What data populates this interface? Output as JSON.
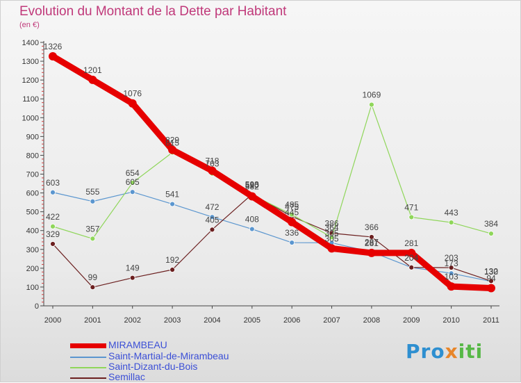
{
  "title": "Evolution du Montant de la Dette par Habitant",
  "subtitle": "(en €)",
  "logo": {
    "part1": "Pro",
    "part2": "x",
    "part3": "iti"
  },
  "chart_data": {
    "type": "line",
    "x": [
      "2000",
      "2001",
      "2002",
      "2003",
      "2004",
      "2005",
      "2006",
      "2007",
      "2008",
      "2009",
      "2010",
      "2011"
    ],
    "yticks": [
      0,
      100,
      200,
      300,
      400,
      500,
      600,
      700,
      800,
      900,
      1000,
      1100,
      1200,
      1300,
      1400
    ],
    "ylim": [
      0,
      1400
    ],
    "grid": false,
    "legend_position": "bottom-left",
    "series": [
      {
        "name": "MIRAMBEAU",
        "color": "#e60000",
        "values": [
          1326,
          1201,
          1076,
          829,
          718,
          582,
          445,
          305,
          281,
          281,
          103,
          94
        ],
        "labels": [
          "1326",
          "1201",
          "1076",
          "829",
          "718",
          "582",
          "445",
          "305",
          "281",
          "281",
          "103",
          "94"
        ]
      },
      {
        "name": "Saint-Martial-de-Mirambeau",
        "color": "#5b96cf",
        "values": [
          603,
          555,
          605,
          541,
          472,
          408,
          336,
          335,
          287,
          204,
          173,
          130
        ],
        "labels": [
          "603",
          "555",
          "605",
          "541",
          "472",
          "408",
          "336",
          "335",
          "287",
          "204",
          "173",
          "130"
        ]
      },
      {
        "name": "Saint-Dizant-du-Bois",
        "color": "#8fd65a",
        "values": [
          422,
          357,
          654,
          815,
          703,
          590,
          485,
          364,
          1069,
          471,
          443,
          384
        ],
        "labels": [
          "422",
          "357",
          "654",
          "815",
          "703",
          "590",
          "485",
          "364",
          "1069",
          "471",
          "443",
          "384"
        ]
      },
      {
        "name": "Semillac",
        "color": "#6b1f1f",
        "values": [
          329,
          99,
          149,
          192,
          405,
          593,
          475,
          386,
          366,
          204,
          203,
          132
        ],
        "labels": [
          "329",
          "99",
          "149",
          "192",
          "405",
          "593",
          "475",
          "386",
          "366",
          "204",
          "203",
          "132"
        ]
      }
    ]
  }
}
